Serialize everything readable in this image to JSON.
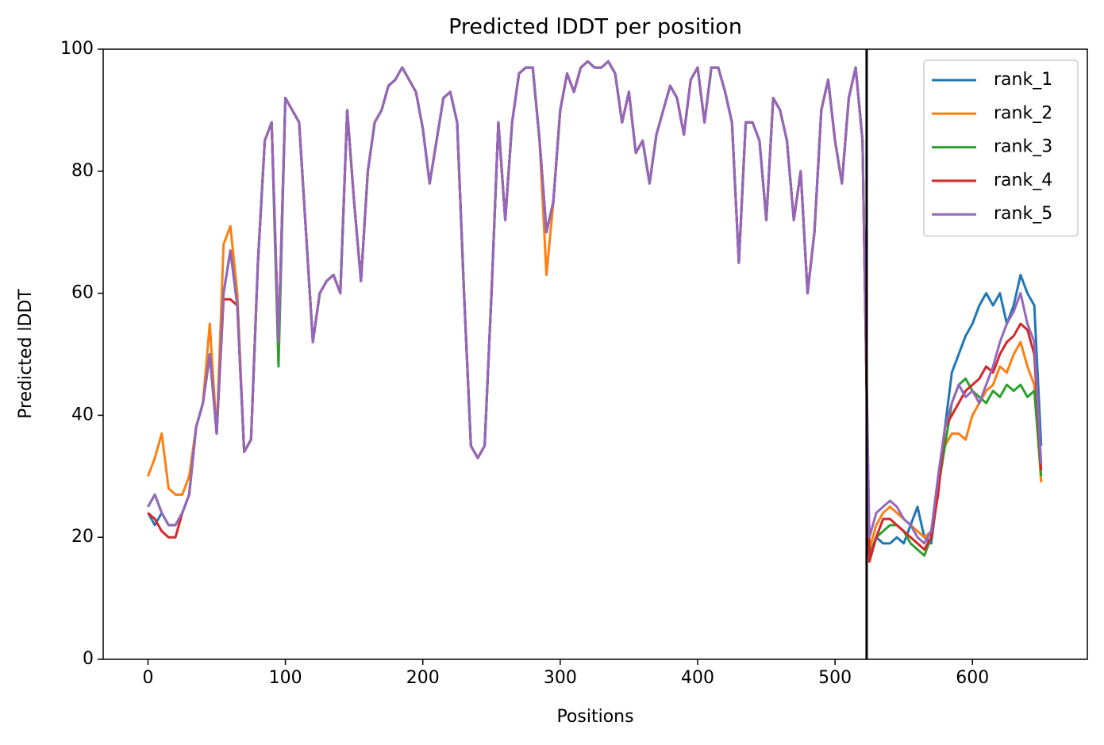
{
  "chart_data": {
    "type": "line",
    "title": "Predicted lDDT per position",
    "xlabel": "Positions",
    "ylabel": "Predicted lDDT",
    "xlim": [
      -32.6,
      683.6
    ],
    "ylim": [
      0,
      100
    ],
    "xticks": [
      0,
      100,
      200,
      300,
      400,
      500,
      600
    ],
    "yticks": [
      0,
      20,
      40,
      60,
      80,
      100
    ],
    "vline": 523,
    "vline_color": "#000000",
    "legend": "upper right",
    "x": [
      0,
      5,
      10,
      15,
      20,
      25,
      30,
      35,
      40,
      45,
      50,
      55,
      60,
      65,
      70,
      75,
      80,
      85,
      90,
      95,
      100,
      105,
      110,
      115,
      120,
      125,
      130,
      135,
      140,
      145,
      150,
      155,
      160,
      165,
      170,
      175,
      180,
      185,
      190,
      195,
      200,
      205,
      210,
      215,
      220,
      225,
      230,
      235,
      240,
      245,
      250,
      255,
      260,
      265,
      270,
      275,
      280,
      285,
      290,
      295,
      300,
      305,
      310,
      315,
      320,
      325,
      330,
      335,
      340,
      345,
      350,
      355,
      360,
      365,
      370,
      375,
      380,
      385,
      390,
      395,
      400,
      405,
      410,
      415,
      420,
      425,
      430,
      435,
      440,
      445,
      450,
      455,
      460,
      465,
      470,
      475,
      480,
      485,
      490,
      495,
      500,
      505,
      510,
      515,
      520,
      525,
      530,
      535,
      540,
      545,
      550,
      555,
      560,
      565,
      570,
      575,
      580,
      585,
      590,
      595,
      600,
      605,
      610,
      615,
      620,
      625,
      630,
      635,
      640,
      645,
      650
    ],
    "series": [
      {
        "name": "rank_1",
        "color": "#1f77b4",
        "values": [
          24,
          22,
          24,
          22,
          22,
          24,
          27,
          38,
          42,
          50,
          37,
          60,
          67,
          58,
          34,
          36,
          65,
          85,
          88,
          52,
          92,
          90,
          88,
          70,
          52,
          60,
          62,
          63,
          60,
          90,
          75,
          62,
          80,
          88,
          90,
          94,
          95,
          97,
          95,
          93,
          87,
          78,
          85,
          92,
          93,
          88,
          60,
          35,
          33,
          35,
          60,
          88,
          72,
          88,
          96,
          97,
          97,
          85,
          70,
          75,
          90,
          96,
          93,
          97,
          98,
          97,
          97,
          98,
          96,
          88,
          93,
          83,
          85,
          78,
          86,
          90,
          94,
          92,
          86,
          95,
          97,
          88,
          97,
          97,
          93,
          88,
          65,
          88,
          88,
          85,
          72,
          92,
          90,
          85,
          72,
          80,
          60,
          70,
          90,
          95,
          85,
          78,
          92,
          97,
          85,
          17,
          20,
          19,
          19,
          20,
          19,
          22,
          25,
          20,
          19,
          28,
          38,
          47,
          50,
          53,
          55,
          58,
          60,
          58,
          60,
          55,
          58,
          63,
          60,
          58,
          35
        ]
      },
      {
        "name": "rank_2",
        "color": "#ff7f0e",
        "values": [
          30,
          33,
          37,
          28,
          27,
          27,
          30,
          38,
          42,
          55,
          37,
          68,
          71,
          60,
          34,
          36,
          65,
          85,
          88,
          52,
          92,
          90,
          88,
          70,
          52,
          60,
          62,
          63,
          60,
          90,
          75,
          62,
          80,
          88,
          90,
          94,
          95,
          97,
          95,
          93,
          87,
          78,
          85,
          92,
          93,
          88,
          60,
          35,
          33,
          35,
          60,
          88,
          72,
          88,
          96,
          97,
          97,
          85,
          63,
          75,
          90,
          96,
          93,
          97,
          98,
          97,
          97,
          98,
          96,
          88,
          93,
          83,
          85,
          78,
          86,
          90,
          94,
          92,
          86,
          95,
          97,
          88,
          97,
          97,
          93,
          88,
          65,
          88,
          88,
          85,
          72,
          92,
          90,
          85,
          72,
          80,
          60,
          70,
          90,
          95,
          85,
          78,
          92,
          97,
          85,
          18,
          22,
          24,
          25,
          24,
          23,
          22,
          21,
          20,
          21,
          28,
          35,
          37,
          37,
          36,
          40,
          42,
          44,
          45,
          48,
          47,
          50,
          52,
          48,
          45,
          29
        ]
      },
      {
        "name": "rank_3",
        "color": "#2ca02c",
        "values": [
          25,
          27,
          24,
          22,
          22,
          24,
          27,
          38,
          42,
          50,
          37,
          60,
          67,
          58,
          34,
          36,
          65,
          85,
          88,
          48,
          92,
          90,
          88,
          70,
          52,
          60,
          62,
          63,
          60,
          90,
          75,
          62,
          80,
          88,
          90,
          94,
          95,
          97,
          95,
          93,
          87,
          78,
          85,
          92,
          93,
          88,
          60,
          35,
          33,
          35,
          60,
          88,
          72,
          88,
          96,
          97,
          97,
          85,
          70,
          75,
          90,
          96,
          93,
          97,
          98,
          97,
          97,
          98,
          96,
          88,
          93,
          83,
          85,
          78,
          86,
          90,
          94,
          92,
          86,
          95,
          97,
          88,
          97,
          97,
          93,
          88,
          65,
          88,
          88,
          85,
          72,
          92,
          90,
          85,
          72,
          80,
          60,
          70,
          90,
          95,
          85,
          78,
          92,
          97,
          85,
          17,
          20,
          21,
          22,
          22,
          21,
          19,
          18,
          17,
          20,
          28,
          35,
          42,
          45,
          46,
          44,
          43,
          42,
          44,
          43,
          45,
          44,
          45,
          43,
          44,
          30
        ]
      },
      {
        "name": "rank_4",
        "color": "#d62728",
        "values": [
          24,
          23,
          21,
          20,
          20,
          24,
          27,
          38,
          42,
          50,
          37,
          59,
          59,
          58,
          34,
          36,
          65,
          85,
          88,
          52,
          92,
          90,
          88,
          70,
          52,
          60,
          62,
          63,
          60,
          90,
          75,
          62,
          80,
          88,
          90,
          94,
          95,
          97,
          95,
          93,
          87,
          78,
          85,
          92,
          93,
          88,
          60,
          35,
          33,
          35,
          60,
          88,
          72,
          88,
          96,
          97,
          97,
          85,
          70,
          75,
          90,
          96,
          93,
          97,
          98,
          97,
          97,
          98,
          96,
          88,
          93,
          83,
          85,
          78,
          86,
          90,
          94,
          92,
          86,
          95,
          97,
          88,
          97,
          97,
          93,
          88,
          65,
          88,
          88,
          85,
          72,
          92,
          90,
          85,
          72,
          80,
          60,
          70,
          90,
          95,
          85,
          78,
          92,
          97,
          85,
          16,
          20,
          23,
          23,
          22,
          21,
          20,
          19,
          18,
          20,
          27,
          38,
          40,
          42,
          44,
          45,
          46,
          48,
          47,
          50,
          52,
          53,
          55,
          54,
          50,
          31
        ]
      },
      {
        "name": "rank_5",
        "color": "#9467bd",
        "values": [
          25,
          27,
          24,
          22,
          22,
          24,
          27,
          38,
          42,
          50,
          37,
          60,
          67,
          58,
          34,
          36,
          65,
          85,
          88,
          52,
          92,
          90,
          88,
          70,
          52,
          60,
          62,
          63,
          60,
          90,
          75,
          62,
          80,
          88,
          90,
          94,
          95,
          97,
          95,
          93,
          87,
          78,
          85,
          92,
          93,
          88,
          60,
          35,
          33,
          35,
          60,
          88,
          72,
          88,
          96,
          97,
          97,
          85,
          70,
          75,
          90,
          96,
          93,
          97,
          98,
          97,
          97,
          98,
          96,
          88,
          93,
          83,
          85,
          78,
          86,
          90,
          94,
          92,
          86,
          95,
          97,
          88,
          97,
          97,
          93,
          88,
          65,
          88,
          88,
          85,
          72,
          92,
          90,
          85,
          72,
          80,
          60,
          70,
          90,
          95,
          85,
          78,
          92,
          97,
          85,
          20,
          24,
          25,
          26,
          25,
          23,
          22,
          20,
          19,
          21,
          30,
          38,
          42,
          45,
          43,
          44,
          42,
          45,
          48,
          52,
          55,
          57,
          60,
          55,
          52,
          32
        ]
      }
    ]
  }
}
